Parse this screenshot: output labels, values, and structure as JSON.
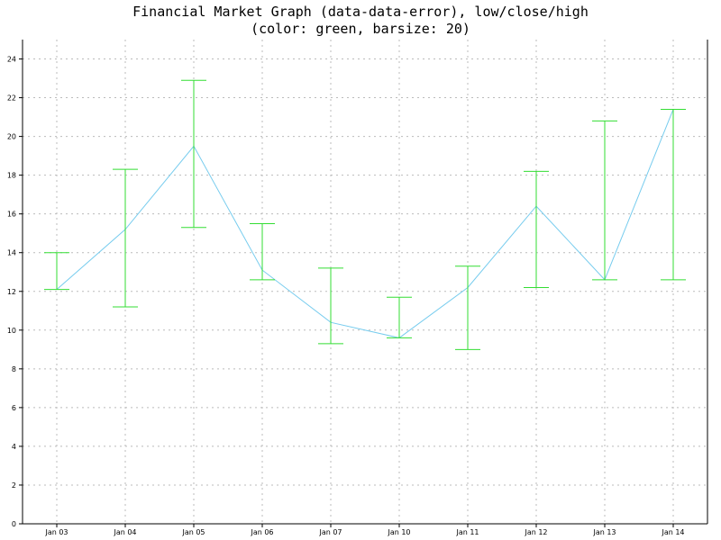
{
  "chart_data": {
    "type": "errorbar",
    "title_lines": [
      "Financial Market Graph (data-data-error), low/close/high",
      "(color: green, barsize: 20)"
    ],
    "xlabel": "",
    "ylabel": "",
    "categories": [
      "Jan 03",
      "Jan 04",
      "Jan 05",
      "Jan 06",
      "Jan 07",
      "Jan 10",
      "Jan 11",
      "Jan 12",
      "Jan 13",
      "Jan 14"
    ],
    "low": [
      12.1,
      11.2,
      15.3,
      12.6,
      9.3,
      9.6,
      9.0,
      12.2,
      12.6,
      12.6
    ],
    "close": [
      12.1,
      15.2,
      19.5,
      13.1,
      10.4,
      9.6,
      12.2,
      16.4,
      12.6,
      21.4
    ],
    "high": [
      14.0,
      18.3,
      22.9,
      15.5,
      13.2,
      11.7,
      13.3,
      18.2,
      20.8,
      21.4
    ],
    "ylim": [
      0,
      25
    ],
    "yticks": [
      0,
      2,
      4,
      6,
      8,
      10,
      12,
      14,
      16,
      18,
      20,
      22,
      24
    ],
    "grid": true,
    "colors": {
      "errorbar": "#33dd33",
      "line": "#77ccee",
      "grid": "#bbbbbb",
      "axis": "#000000"
    }
  }
}
